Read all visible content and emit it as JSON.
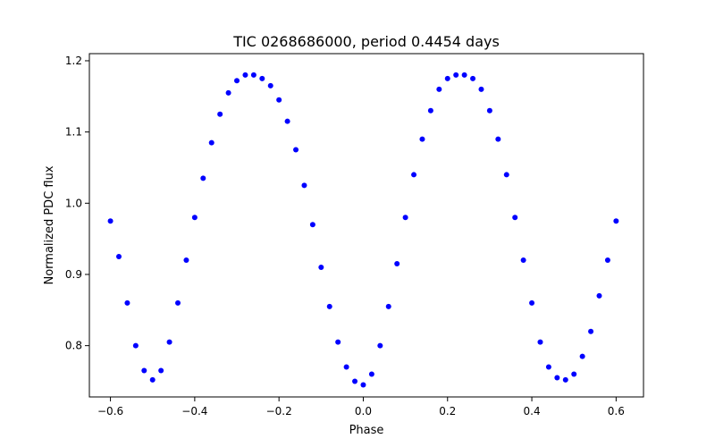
{
  "chart_data": {
    "type": "scatter",
    "title": "TIC 0268686000, period 0.4454 days",
    "xlabel": "Phase",
    "ylabel": "Normalized PDC flux",
    "xlim": [
      -0.65,
      0.665
    ],
    "ylim": [
      0.728,
      1.21
    ],
    "x_ticks": [
      -0.6,
      -0.4,
      -0.2,
      0.0,
      0.2,
      0.4,
      0.6
    ],
    "x_tick_labels": [
      "−0.6",
      "−0.4",
      "−0.2",
      "0.0",
      "0.2",
      "0.4",
      "0.6"
    ],
    "y_ticks": [
      0.8,
      0.9,
      1.0,
      1.1,
      1.2
    ],
    "y_tick_labels": [
      "0.8",
      "0.9",
      "1.0",
      "1.1",
      "1.2"
    ],
    "marker_color": "#0000ff",
    "grid": false,
    "series": [
      {
        "name": "TIC 0268686000",
        "x": [
          -0.6,
          -0.58,
          -0.56,
          -0.54,
          -0.52,
          -0.5,
          -0.48,
          -0.46,
          -0.44,
          -0.42,
          -0.4,
          -0.38,
          -0.36,
          -0.34,
          -0.32,
          -0.3,
          -0.28,
          -0.26,
          -0.24,
          -0.22,
          -0.2,
          -0.18,
          -0.16,
          -0.14,
          -0.12,
          -0.1,
          -0.08,
          -0.06,
          -0.04,
          -0.02,
          0.0,
          0.02,
          0.04,
          0.06,
          0.08,
          0.1,
          0.12,
          0.14,
          0.16,
          0.18,
          0.2,
          0.22,
          0.24,
          0.26,
          0.28,
          0.3,
          0.32,
          0.34,
          0.36,
          0.38,
          0.4,
          0.42,
          0.44,
          0.46,
          0.48,
          0.5,
          0.52,
          0.54,
          0.56,
          0.58,
          0.6
        ],
        "y": [
          0.975,
          0.925,
          0.86,
          0.8,
          0.765,
          0.752,
          0.765,
          0.805,
          0.86,
          0.92,
          0.98,
          1.035,
          1.085,
          1.125,
          1.155,
          1.172,
          1.18,
          1.18,
          1.175,
          1.165,
          1.145,
          1.115,
          1.075,
          1.025,
          0.97,
          0.91,
          0.855,
          0.805,
          0.77,
          0.75,
          0.745,
          0.76,
          0.8,
          0.855,
          0.915,
          0.98,
          1.04,
          1.09,
          1.13,
          1.16,
          1.175,
          1.18,
          1.18,
          1.175,
          1.16,
          1.13,
          1.09,
          1.04,
          0.98,
          0.92,
          0.86,
          0.805,
          0.77,
          0.755,
          0.752,
          0.76,
          0.785,
          0.82,
          0.87,
          0.92,
          0.975
        ]
      }
    ]
  }
}
